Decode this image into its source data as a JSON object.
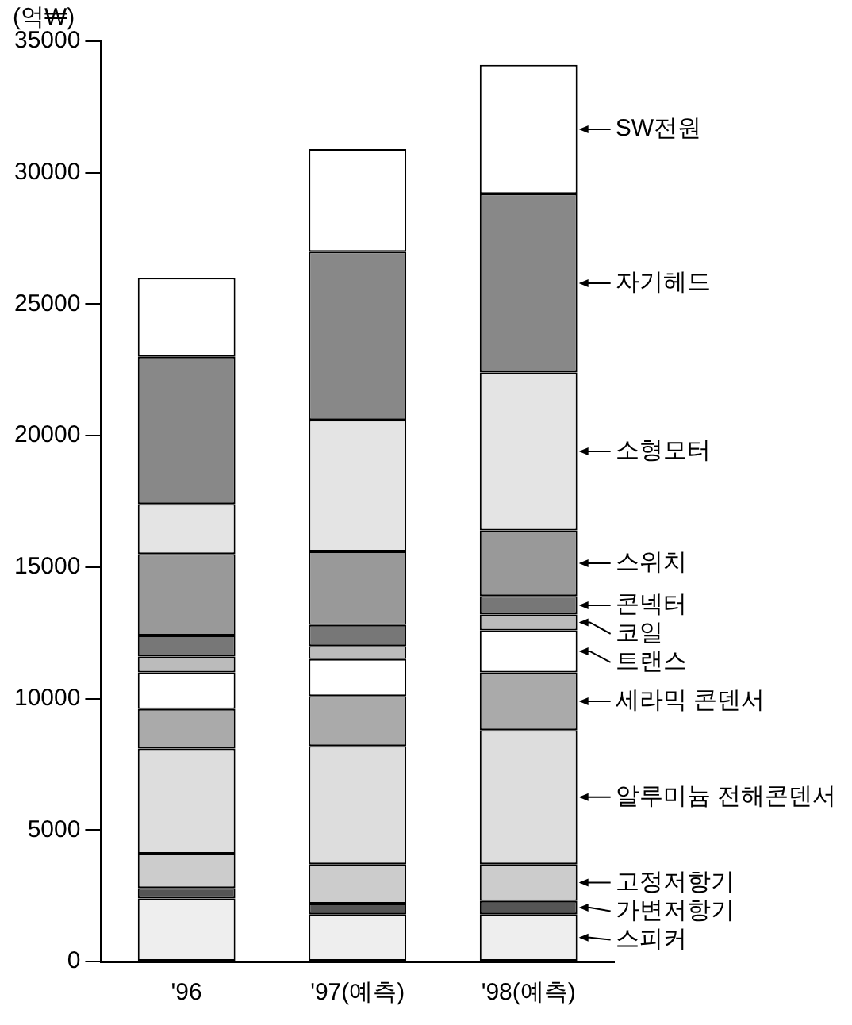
{
  "chart_data": {
    "type": "bar",
    "stacked": true,
    "ylabel": "(억₩)",
    "categories": [
      "'96",
      "'97(예측)",
      "'98(예측)"
    ],
    "ylim": [
      0,
      35000
    ],
    "yticks": [
      0,
      5000,
      10000,
      15000,
      20000,
      25000,
      30000,
      35000
    ],
    "series": [
      {
        "name": "스피커",
        "color": "#eeeeee",
        "values": [
          2400,
          1800,
          1800
        ]
      },
      {
        "name": "가변저항기",
        "color": "#555555",
        "values": [
          400,
          400,
          500
        ]
      },
      {
        "name": "고정저항기",
        "color": "#cccccc",
        "values": [
          1300,
          1500,
          1400
        ]
      },
      {
        "name": "알루미늄 전해콘덴서",
        "color": "#dddddd",
        "values": [
          4000,
          4500,
          5100
        ]
      },
      {
        "name": "세라믹 콘덴서",
        "color": "#aaaaaa",
        "values": [
          1500,
          1900,
          2200
        ]
      },
      {
        "name": "트랜스",
        "color": "#ffffff",
        "values": [
          1400,
          1400,
          1600
        ]
      },
      {
        "name": "코일",
        "color": "#bbbbbb",
        "values": [
          600,
          500,
          600
        ]
      },
      {
        "name": "콘넥터",
        "color": "#777777",
        "values": [
          800,
          800,
          700
        ]
      },
      {
        "name": "스위치",
        "color": "#999999",
        "values": [
          3100,
          2800,
          2500
        ]
      },
      {
        "name": "소형모터",
        "color": "#e4e4e4",
        "values": [
          1900,
          5000,
          6000
        ]
      },
      {
        "name": "자기헤드",
        "color": "#888888",
        "values": [
          5600,
          6400,
          6800
        ]
      },
      {
        "name": "SW전원",
        "color": "#ffffff",
        "values": [
          3000,
          3900,
          4900
        ]
      }
    ]
  }
}
